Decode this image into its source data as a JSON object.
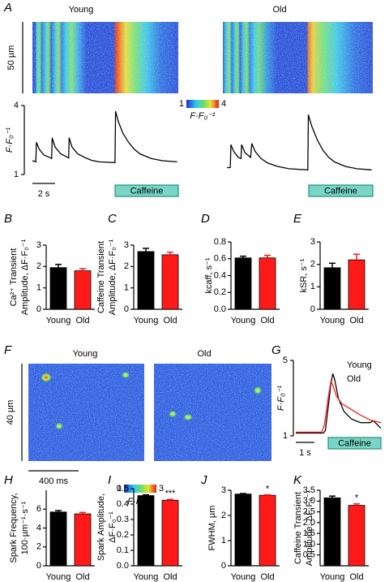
{
  "chart_data": [
    {
      "type": "line",
      "panel": "A",
      "y_label": "F·F₀⁻¹",
      "ylim": [
        1,
        4
      ],
      "yticks": [
        1,
        4
      ],
      "xlim": [
        0,
        12.9
      ],
      "series": [
        {
          "name": "Young",
          "color": "#000000",
          "x": [
            0,
            0.3,
            0.35,
            0.6,
            1.0,
            1.5,
            1.7,
            1.75,
            2.0,
            2.5,
            3.1,
            3.2,
            3.25,
            3.5,
            4.0,
            4.6,
            5.2,
            5.9,
            7.3,
            7.35,
            7.6,
            8.0,
            8.5,
            9.0,
            9.5,
            10.5,
            11.5,
            12.8
          ],
          "values": [
            1.6,
            1.55,
            2.4,
            2.1,
            1.85,
            1.75,
            1.7,
            2.6,
            2.2,
            1.9,
            1.75,
            1.72,
            2.6,
            2.2,
            1.9,
            1.75,
            1.62,
            1.55,
            1.52,
            3.75,
            3.3,
            2.8,
            2.4,
            2.1,
            1.9,
            1.7,
            1.6,
            1.55
          ]
        },
        {
          "name": "Old",
          "color": "#000000",
          "x": [
            0,
            0.3,
            0.35,
            0.6,
            1.0,
            1.25,
            1.3,
            1.6,
            2.1,
            2.2,
            2.5,
            3.0,
            3.6,
            4.5,
            5.5,
            7.15,
            7.2,
            7.5,
            8.0,
            8.5,
            9.0,
            9.5,
            10.5,
            11.5,
            12.8
          ],
          "values": [
            1.3,
            1.3,
            2.3,
            2.0,
            1.75,
            1.7,
            2.3,
            1.95,
            1.75,
            2.35,
            2.0,
            1.7,
            1.5,
            1.35,
            1.25,
            1.2,
            3.6,
            3.1,
            2.5,
            2.05,
            1.75,
            1.55,
            1.35,
            1.25,
            1.2
          ]
        }
      ],
      "scale_bar": {
        "value": 2,
        "label": "2 s"
      },
      "caffeine_label": "Caffeine",
      "image_scale_bar": "50 µm",
      "colorbar": {
        "ticks": [
          1,
          4
        ],
        "label": "F·F₀⁻¹"
      }
    },
    {
      "type": "bar",
      "panel": "B",
      "y_label": [
        "Ca²⁺ Transient",
        "Amplitude, ΔF·F₀⁻¹"
      ],
      "categories": [
        "Young",
        "Old"
      ],
      "values": [
        1.95,
        1.8
      ],
      "errors": [
        0.15,
        0.1
      ],
      "colors": [
        "#000000",
        "#ff1a1a"
      ],
      "ylim": [
        0,
        3
      ],
      "yticks": [
        0,
        1,
        2,
        3
      ]
    },
    {
      "type": "bar",
      "panel": "C",
      "y_label": [
        "Caffeine Transient",
        "Amplitude, ΔF·F₀⁻¹"
      ],
      "categories": [
        "Young",
        "Old"
      ],
      "values": [
        2.7,
        2.55
      ],
      "errors": [
        0.15,
        0.12
      ],
      "colors": [
        "#000000",
        "#ff1a1a"
      ],
      "ylim": [
        0,
        3
      ],
      "yticks": [
        0,
        1,
        2,
        3
      ]
    },
    {
      "type": "bar",
      "panel": "D",
      "y_label": [
        "kcaff, s⁻¹"
      ],
      "categories": [
        "Young",
        "Old"
      ],
      "values": [
        0.61,
        0.61
      ],
      "errors": [
        0.02,
        0.03
      ],
      "colors": [
        "#000000",
        "#ff1a1a"
      ],
      "ylim": [
        0,
        0.8
      ],
      "yticks": [
        {
          "value": 0,
          "label": "0.0"
        },
        0.2,
        0.4,
        0.6,
        0.8
      ]
    },
    {
      "type": "bar",
      "panel": "E",
      "y_label": [
        "kSR, s⁻¹"
      ],
      "categories": [
        "Young",
        "Old"
      ],
      "values": [
        1.85,
        2.2
      ],
      "errors": [
        0.2,
        0.25
      ],
      "colors": [
        "#000000",
        "#ff1a1a"
      ],
      "ylim": [
        0,
        3
      ],
      "yticks": [
        0,
        1,
        2,
        3
      ]
    },
    {
      "type": "image",
      "panel": "F",
      "titles": [
        "Young",
        "Old"
      ],
      "scale_bar_y": "40 µm",
      "scale_bar_x": "400 ms",
      "colorbar": {
        "ticks": [
          1,
          3
        ],
        "label": "F·F₀⁻¹"
      }
    },
    {
      "type": "line",
      "panel": "G",
      "y_label": "F·F₀⁻¹",
      "ylim": [
        1,
        5
      ],
      "yticks": [
        1,
        5
      ],
      "xlim": [
        0,
        4.6
      ],
      "series": [
        {
          "name": "Young",
          "color": "#000000",
          "x": [
            0,
            1.5,
            1.6,
            1.75,
            1.9,
            2.0,
            2.1,
            2.3,
            2.6,
            3.0,
            3.5,
            4.0,
            4.2,
            4.6
          ],
          "values": [
            1.15,
            1.15,
            1.3,
            2.5,
            3.8,
            4.3,
            4.0,
            3.0,
            2.3,
            1.9,
            1.7,
            1.7,
            1.8,
            1.4
          ]
        },
        {
          "name": "Old",
          "color": "#ff1a1a",
          "x": [
            0,
            1.4,
            1.55,
            1.75,
            1.9,
            2.0,
            2.2,
            2.5,
            3.0,
            3.5,
            4.0,
            4.6
          ],
          "values": [
            1.2,
            1.2,
            1.6,
            3.0,
            3.9,
            3.7,
            3.1,
            2.7,
            2.4,
            2.1,
            1.85,
            1.7
          ]
        }
      ],
      "scale_bar": {
        "value": 1,
        "label": "1 s"
      },
      "caffeine_label": "Caffeine"
    },
    {
      "type": "bar",
      "panel": "H",
      "y_label": [
        "Spark Frequency,",
        "100·µm⁻¹·s⁻¹"
      ],
      "categories": [
        "Young",
        "Old"
      ],
      "values": [
        5.7,
        5.5
      ],
      "errors": [
        0.15,
        0.15
      ],
      "colors": [
        "#000000",
        "#ff1a1a"
      ],
      "ylim": [
        0,
        8
      ],
      "yticks": [
        0,
        2,
        4,
        6
      ]
    },
    {
      "type": "bar",
      "panel": "I",
      "y_label": [
        "Spark Amplitude,",
        "ΔF·F₀⁻¹"
      ],
      "categories": [
        "Young",
        "Old"
      ],
      "values": [
        0.455,
        0.425
      ],
      "errors": [
        0.005,
        0.005
      ],
      "colors": [
        "#000000",
        "#ff1a1a"
      ],
      "ylim": [
        0,
        0.5
      ],
      "yticks": [
        {
          "value": 0,
          "label": "0.0"
        },
        0.1,
        0.2,
        0.3,
        0.4,
        0.5
      ],
      "annotations": [
        null,
        "***"
      ]
    },
    {
      "type": "bar",
      "panel": "J",
      "y_label": [
        "FWHM, µm"
      ],
      "categories": [
        "Young",
        "Old"
      ],
      "values": [
        2.85,
        2.8
      ],
      "errors": [
        0.02,
        0.02
      ],
      "colors": [
        "#000000",
        "#ff1a1a"
      ],
      "ylim": [
        0,
        3
      ],
      "yticks": [
        0,
        1,
        2,
        3
      ],
      "annotations": [
        null,
        "*"
      ]
    },
    {
      "type": "bar",
      "panel": "K",
      "y_label": [
        "Caffeine Transient",
        "Amplitude, ΔF·F₀⁻¹"
      ],
      "categories": [
        "Young",
        "Old"
      ],
      "values": [
        3.15,
        2.8
      ],
      "errors": [
        0.08,
        0.07
      ],
      "colors": [
        "#000000",
        "#ff1a1a"
      ],
      "ylim": [
        0,
        3.5
      ],
      "yticks": [
        0.5,
        {
          "value": 1,
          "label": "1.0"
        },
        1.5,
        {
          "value": 2,
          "label": "2.0"
        },
        2.5,
        {
          "value": 3,
          "label": "3.0"
        },
        3.5
      ],
      "annotations": [
        null,
        "*"
      ]
    }
  ]
}
